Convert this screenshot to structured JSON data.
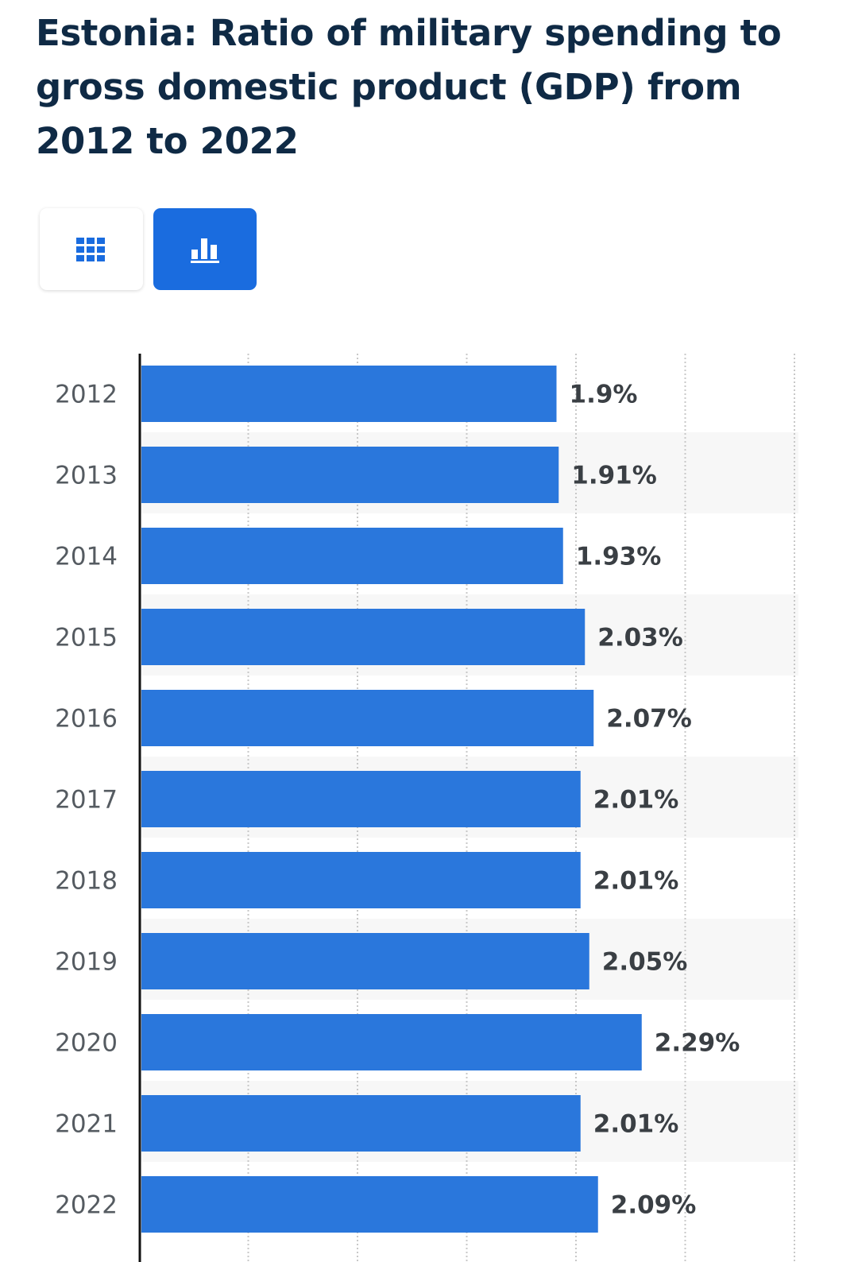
{
  "header": {
    "title": "Estonia: Ratio of military spending to gross domestic product (GDP) from 2012 to 2022"
  },
  "view_toggle": {
    "options": [
      {
        "id": "table",
        "icon": "table-grid-icon",
        "active": false
      },
      {
        "id": "chart",
        "icon": "bar-chart-icon",
        "active": true
      }
    ]
  },
  "colors": {
    "bar": "#2a77dc",
    "active_toggle": "#1a6cdf",
    "title": "#0f2a45",
    "stripe": "#f7f7f7"
  },
  "chart_data": {
    "type": "bar",
    "orientation": "horizontal",
    "title": "Estonia: Ratio of military spending to gross domestic product (GDP) from 2012 to 2022",
    "xlabel": "",
    "ylabel": "",
    "categories": [
      "2012",
      "2013",
      "2014",
      "2015",
      "2016",
      "2017",
      "2018",
      "2019",
      "2020",
      "2021",
      "2022"
    ],
    "values": [
      1.9,
      1.91,
      1.93,
      2.03,
      2.07,
      2.01,
      2.01,
      2.05,
      2.29,
      2.01,
      2.09
    ],
    "value_labels": [
      "1.9%",
      "1.91%",
      "1.93%",
      "2.03%",
      "2.07%",
      "2.01%",
      "2.01%",
      "2.05%",
      "2.29%",
      "2.01%",
      "2.09%"
    ],
    "xlim": [
      0,
      3
    ],
    "gridlines": [
      0.5,
      1,
      1.5,
      2,
      2.5,
      3
    ],
    "grid": true,
    "legend": "none"
  }
}
